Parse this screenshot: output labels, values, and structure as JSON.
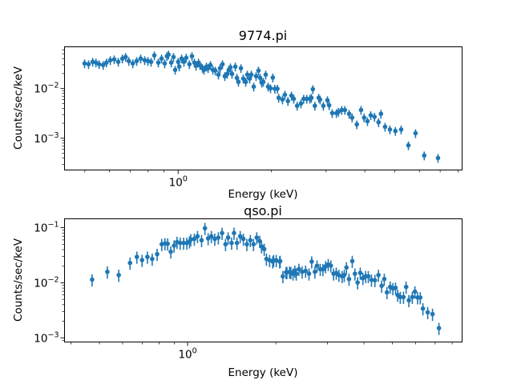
{
  "chart_data": [
    {
      "type": "scatter",
      "style": "errorbar",
      "title": "9774.pi",
      "xlabel": "Energy (keV)",
      "ylabel": "Counts/sec/keV",
      "xscale": "log",
      "yscale": "log",
      "xlim": [
        0.43,
        8.24
      ],
      "ylim": [
        0.00023,
        0.069
      ],
      "xticks": [
        {
          "value": 1,
          "base": "10",
          "exp": "0"
        }
      ],
      "yticks": [
        {
          "value": 0.01,
          "base": "10",
          "exp": "−2"
        },
        {
          "value": 0.001,
          "base": "10",
          "exp": "−3"
        }
      ],
      "grid": false,
      "color": "#1f77b4",
      "rel_err": 0.2,
      "points": [
        [
          0.499,
          0.032
        ],
        [
          0.514,
          0.0308
        ],
        [
          0.53,
          0.0344
        ],
        [
          0.543,
          0.0332
        ],
        [
          0.556,
          0.0308
        ],
        [
          0.573,
          0.0297
        ],
        [
          0.587,
          0.0332
        ],
        [
          0.604,
          0.0371
        ],
        [
          0.622,
          0.0385
        ],
        [
          0.641,
          0.0344
        ],
        [
          0.661,
          0.04
        ],
        [
          0.677,
          0.043
        ],
        [
          0.693,
          0.0357
        ],
        [
          0.714,
          0.032
        ],
        [
          0.735,
          0.0357
        ],
        [
          0.757,
          0.04
        ],
        [
          0.78,
          0.0371
        ],
        [
          0.799,
          0.0357
        ],
        [
          0.818,
          0.0344
        ],
        [
          0.838,
          0.0463
        ],
        [
          0.863,
          0.0332
        ],
        [
          0.884,
          0.04
        ],
        [
          0.905,
          0.032
        ],
        [
          0.92,
          0.0447
        ],
        [
          0.931,
          0.0481
        ],
        [
          0.95,
          0.0332
        ],
        [
          0.966,
          0.043
        ],
        [
          0.978,
          0.0238
        ],
        [
          1.0,
          0.0344
        ],
        [
          1.008,
          0.0276
        ],
        [
          1.026,
          0.04
        ],
        [
          1.044,
          0.0344
        ],
        [
          1.062,
          0.0415
        ],
        [
          1.087,
          0.0308
        ],
        [
          1.108,
          0.0447
        ],
        [
          1.128,
          0.0332
        ],
        [
          1.142,
          0.0286
        ],
        [
          1.163,
          0.0332
        ],
        [
          1.176,
          0.0297
        ],
        [
          1.198,
          0.0256
        ],
        [
          1.212,
          0.0238
        ],
        [
          1.234,
          0.0276
        ],
        [
          1.249,
          0.0256
        ],
        [
          1.271,
          0.0297
        ],
        [
          1.294,
          0.0238
        ],
        [
          1.318,
          0.0229
        ],
        [
          1.349,
          0.019
        ],
        [
          1.365,
          0.0256
        ],
        [
          1.39,
          0.0308
        ],
        [
          1.414,
          0.0177
        ],
        [
          1.44,
          0.0197
        ],
        [
          1.457,
          0.0238
        ],
        [
          1.475,
          0.0265
        ],
        [
          1.492,
          0.0197
        ],
        [
          1.529,
          0.0276
        ],
        [
          1.547,
          0.0164
        ],
        [
          1.565,
          0.0136
        ],
        [
          1.594,
          0.0256
        ],
        [
          1.622,
          0.0158
        ],
        [
          1.652,
          0.0136
        ],
        [
          1.671,
          0.019
        ],
        [
          1.701,
          0.0158
        ],
        [
          1.722,
          0.019
        ],
        [
          1.753,
          0.0109
        ],
        [
          1.784,
          0.0177
        ],
        [
          1.816,
          0.0229
        ],
        [
          1.838,
          0.0164
        ],
        [
          1.86,
          0.0131
        ],
        [
          1.882,
          0.0136
        ],
        [
          1.916,
          0.019
        ],
        [
          1.95,
          0.0109
        ],
        [
          1.986,
          0.0101
        ],
        [
          2.02,
          0.0166
        ],
        [
          2.05,
          0.0099
        ],
        [
          2.09,
          0.0099
        ],
        [
          2.11,
          0.0065
        ],
        [
          2.17,
          0.006
        ],
        [
          2.21,
          0.0075
        ],
        [
          2.26,
          0.0056
        ],
        [
          2.32,
          0.0072
        ],
        [
          2.36,
          0.0062
        ],
        [
          2.42,
          0.0045
        ],
        [
          2.49,
          0.005
        ],
        [
          2.54,
          0.0062
        ],
        [
          2.6,
          0.0062
        ],
        [
          2.66,
          0.0062
        ],
        [
          2.69,
          0.0065
        ],
        [
          2.72,
          0.0097
        ],
        [
          2.76,
          0.0045
        ],
        [
          2.84,
          0.0065
        ],
        [
          2.87,
          0.006
        ],
        [
          2.94,
          0.0045
        ],
        [
          3.03,
          0.0058
        ],
        [
          3.07,
          0.0046
        ],
        [
          3.14,
          0.0032
        ],
        [
          3.24,
          0.0032
        ],
        [
          3.29,
          0.0034
        ],
        [
          3.37,
          0.0037
        ],
        [
          3.45,
          0.0037
        ],
        [
          3.56,
          0.0031
        ],
        [
          3.64,
          0.0026
        ],
        [
          3.77,
          0.0019
        ],
        [
          3.89,
          0.0037
        ],
        [
          3.98,
          0.0026
        ],
        [
          4.08,
          0.0022
        ],
        [
          4.18,
          0.0029
        ],
        [
          4.3,
          0.0027
        ],
        [
          4.43,
          0.0021
        ],
        [
          4.51,
          0.0031
        ],
        [
          4.65,
          0.0017
        ],
        [
          4.82,
          0.0015
        ],
        [
          5.02,
          0.0014
        ],
        [
          5.24,
          0.0015
        ],
        [
          5.53,
          0.00072
        ],
        [
          5.83,
          0.00126
        ],
        [
          6.22,
          0.00045
        ],
        [
          6.89,
          0.0004
        ]
      ]
    },
    {
      "type": "scatter",
      "style": "errorbar",
      "title": "qso.pi",
      "xlabel": "Energy (keV)",
      "ylabel": "Counts/sec/keV",
      "xscale": "log",
      "yscale": "log",
      "xlim": [
        0.38,
        8.65
      ],
      "ylim": [
        0.00084,
        0.145
      ],
      "xticks": [
        {
          "value": 1,
          "base": "10",
          "exp": "0"
        }
      ],
      "yticks": [
        {
          "value": 0.1,
          "base": "10",
          "exp": "−1"
        },
        {
          "value": 0.01,
          "base": "10",
          "exp": "−2"
        },
        {
          "value": 0.001,
          "base": "10",
          "exp": "−3"
        }
      ],
      "grid": false,
      "color": "#1f77b4",
      "rel_err": 0.25,
      "points": [
        [
          0.472,
          0.0114
        ],
        [
          0.532,
          0.0158
        ],
        [
          0.582,
          0.0138
        ],
        [
          0.636,
          0.0229
        ],
        [
          0.671,
          0.0295
        ],
        [
          0.699,
          0.0258
        ],
        [
          0.729,
          0.0295
        ],
        [
          0.757,
          0.0271
        ],
        [
          0.787,
          0.0331
        ],
        [
          0.816,
          0.05
        ],
        [
          0.837,
          0.0517
        ],
        [
          0.855,
          0.0511
        ],
        [
          0.876,
          0.0366
        ],
        [
          0.899,
          0.0472
        ],
        [
          0.92,
          0.0547
        ],
        [
          0.943,
          0.0528
        ],
        [
          0.969,
          0.0528
        ],
        [
          0.994,
          0.0528
        ],
        [
          1.015,
          0.0558
        ],
        [
          1.025,
          0.0611
        ],
        [
          1.054,
          0.0625
        ],
        [
          1.081,
          0.0698
        ],
        [
          1.116,
          0.0591
        ],
        [
          1.146,
          0.0977
        ],
        [
          1.175,
          0.0639
        ],
        [
          1.205,
          0.0698
        ],
        [
          1.238,
          0.0625
        ],
        [
          1.273,
          0.0661
        ],
        [
          1.311,
          0.0799
        ],
        [
          1.347,
          0.05
        ],
        [
          1.375,
          0.0661
        ],
        [
          1.413,
          0.0528
        ],
        [
          1.44,
          0.0799
        ],
        [
          1.474,
          0.0528
        ],
        [
          1.512,
          0.0698
        ],
        [
          1.55,
          0.0625
        ],
        [
          1.593,
          0.05
        ],
        [
          1.637,
          0.0591
        ],
        [
          1.679,
          0.05
        ],
        [
          1.722,
          0.0661
        ],
        [
          1.762,
          0.0571
        ],
        [
          1.788,
          0.0456
        ],
        [
          1.826,
          0.0408
        ],
        [
          1.858,
          0.0271
        ],
        [
          1.905,
          0.0256
        ],
        [
          1.953,
          0.0242
        ],
        [
          1.966,
          0.0256
        ],
        [
          2.007,
          0.0256
        ],
        [
          2.062,
          0.0242
        ],
        [
          2.07,
          0.0247
        ],
        [
          2.114,
          0.0131
        ],
        [
          2.168,
          0.0155
        ],
        [
          2.183,
          0.0155
        ],
        [
          2.229,
          0.0158
        ],
        [
          2.251,
          0.0155
        ],
        [
          2.29,
          0.0146
        ],
        [
          2.323,
          0.0164
        ],
        [
          2.349,
          0.0146
        ],
        [
          2.399,
          0.0177
        ],
        [
          2.46,
          0.0158
        ],
        [
          2.528,
          0.0164
        ],
        [
          2.597,
          0.0146
        ],
        [
          2.652,
          0.0242
        ],
        [
          2.719,
          0.0158
        ],
        [
          2.766,
          0.0204
        ],
        [
          2.836,
          0.0177
        ],
        [
          2.896,
          0.0175
        ],
        [
          2.958,
          0.0198
        ],
        [
          3.02,
          0.0216
        ],
        [
          3.083,
          0.0204
        ],
        [
          3.15,
          0.0146
        ],
        [
          3.217,
          0.0151
        ],
        [
          3.285,
          0.0138
        ],
        [
          3.369,
          0.0131
        ],
        [
          3.426,
          0.0138
        ],
        [
          3.485,
          0.0189
        ],
        [
          3.556,
          0.0117
        ],
        [
          3.648,
          0.0247
        ],
        [
          3.725,
          0.0146
        ],
        [
          3.805,
          0.0101
        ],
        [
          3.884,
          0.0151
        ],
        [
          3.965,
          0.0121
        ],
        [
          4.054,
          0.0131
        ],
        [
          4.138,
          0.0131
        ],
        [
          4.243,
          0.0113
        ],
        [
          4.359,
          0.0111
        ],
        [
          4.482,
          0.0138
        ],
        [
          4.596,
          0.0088
        ],
        [
          4.692,
          0.0117
        ],
        [
          4.791,
          0.0067
        ],
        [
          4.914,
          0.0084
        ],
        [
          5.019,
          0.0079
        ],
        [
          5.125,
          0.0081
        ],
        [
          5.212,
          0.006
        ],
        [
          5.321,
          0.0055
        ],
        [
          5.457,
          0.0055
        ],
        [
          5.571,
          0.0084
        ],
        [
          5.692,
          0.0048
        ],
        [
          5.848,
          0.0055
        ],
        [
          5.97,
          0.0069
        ],
        [
          6.098,
          0.0054
        ],
        [
          6.227,
          0.0054
        ],
        [
          6.357,
          0.0034
        ],
        [
          6.601,
          0.0029
        ],
        [
          6.855,
          0.0027
        ],
        [
          7.21,
          0.0015
        ]
      ]
    }
  ]
}
